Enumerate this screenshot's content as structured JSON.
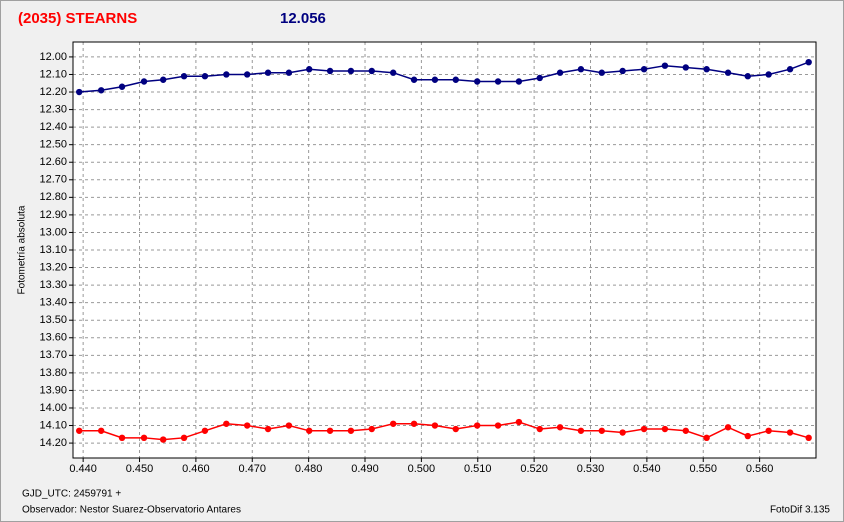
{
  "chart_data": {
    "type": "line",
    "title": "(2035) STEARNS",
    "subtitle": "12.056",
    "ylabel": "Fotometría absoluta",
    "xlabel": "GJD_UTC: 2459791 +",
    "footer_left": "Observador: Nestor Suarez-Observatorio Antares",
    "footer_right": "FotoDif 3.135",
    "x": [
      0.4393,
      0.4432,
      0.4469,
      0.4508,
      0.4542,
      0.4579,
      0.4616,
      0.4654,
      0.4691,
      0.4728,
      0.4765,
      0.4801,
      0.4838,
      0.4875,
      0.4912,
      0.495,
      0.4987,
      0.5024,
      0.5061,
      0.5099,
      0.5136,
      0.5173,
      0.521,
      0.5246,
      0.5283,
      0.532,
      0.5357,
      0.5395,
      0.5432,
      0.5469,
      0.5506,
      0.5544,
      0.5579,
      0.5616,
      0.5654,
      0.5687
    ],
    "series": [
      {
        "color": "#000080",
        "values": [
          12.2,
          12.19,
          12.17,
          12.14,
          12.13,
          12.11,
          12.11,
          12.1,
          12.1,
          12.09,
          12.09,
          12.07,
          12.08,
          12.08,
          12.08,
          12.09,
          12.13,
          12.13,
          12.13,
          12.14,
          12.14,
          12.14,
          12.12,
          12.09,
          12.07,
          12.09,
          12.08,
          12.07,
          12.05,
          12.06,
          12.07,
          12.09,
          12.11,
          12.1,
          12.07,
          12.03
        ]
      },
      {
        "color": "#ff0000",
        "values": [
          14.13,
          14.13,
          14.17,
          14.17,
          14.18,
          14.17,
          14.13,
          14.09,
          14.1,
          14.12,
          14.1,
          14.13,
          14.13,
          14.13,
          14.12,
          14.09,
          14.09,
          14.1,
          14.12,
          14.1,
          14.1,
          14.08,
          14.12,
          14.11,
          14.13,
          14.13,
          14.14,
          14.12,
          14.12,
          14.13,
          14.17,
          14.11,
          14.16,
          14.13,
          14.14,
          14.17
        ]
      }
    ],
    "xlim": [
      0.4382,
      0.57
    ],
    "ylim": [
      11.915,
      14.285
    ],
    "y_inverted": true,
    "grid": true,
    "xticks": [
      {
        "value": 0.44,
        "label": "0.440"
      },
      {
        "value": 0.45,
        "label": "0.450"
      },
      {
        "value": 0.46,
        "label": "0.460"
      },
      {
        "value": 0.47,
        "label": "0.470"
      },
      {
        "value": 0.48,
        "label": "0.480"
      },
      {
        "value": 0.49,
        "label": "0.490"
      },
      {
        "value": 0.5,
        "label": "0.500"
      },
      {
        "value": 0.51,
        "label": "0.510"
      },
      {
        "value": 0.52,
        "label": "0.520"
      },
      {
        "value": 0.53,
        "label": "0.530"
      },
      {
        "value": 0.54,
        "label": "0.540"
      },
      {
        "value": 0.55,
        "label": "0.550"
      },
      {
        "value": 0.56,
        "label": "0.560"
      }
    ],
    "yticks": [
      {
        "value": 12.0,
        "label": "12.00"
      },
      {
        "value": 12.1,
        "label": "12.10"
      },
      {
        "value": 12.2,
        "label": "12.20"
      },
      {
        "value": 12.3,
        "label": "12.30"
      },
      {
        "value": 12.4,
        "label": "12.40"
      },
      {
        "value": 12.5,
        "label": "12.50"
      },
      {
        "value": 12.6,
        "label": "12.60"
      },
      {
        "value": 12.7,
        "label": "12.70"
      },
      {
        "value": 12.8,
        "label": "12.80"
      },
      {
        "value": 12.9,
        "label": "12.90"
      },
      {
        "value": 13.0,
        "label": "13.00"
      },
      {
        "value": 13.1,
        "label": "13.10"
      },
      {
        "value": 13.2,
        "label": "13.20"
      },
      {
        "value": 13.3,
        "label": "13.30"
      },
      {
        "value": 13.4,
        "label": "13.40"
      },
      {
        "value": 13.5,
        "label": "13.50"
      },
      {
        "value": 13.6,
        "label": "13.60"
      },
      {
        "value": 13.7,
        "label": "13.70"
      },
      {
        "value": 13.8,
        "label": "13.80"
      },
      {
        "value": 13.9,
        "label": "13.90"
      },
      {
        "value": 14.0,
        "label": "14.00"
      },
      {
        "value": 14.1,
        "label": "14.10"
      },
      {
        "value": 14.2,
        "label": "14.20"
      }
    ]
  }
}
